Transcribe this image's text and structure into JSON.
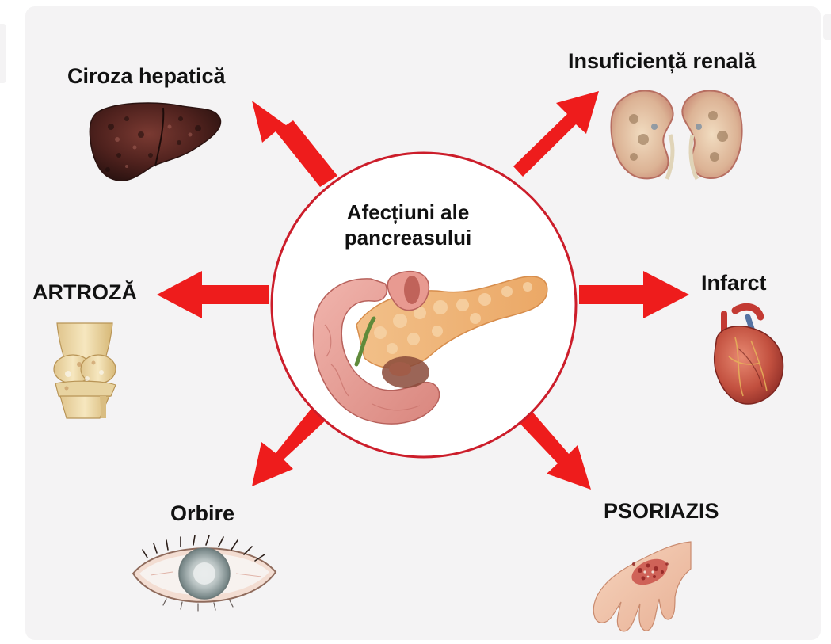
{
  "center": {
    "title_line1": "Afecțiuni ale",
    "title_line2": "pancreasului"
  },
  "conditions": {
    "liver": "Ciroza hepatică",
    "kidney": "Insuficiență renală",
    "joint": "ARTROZĂ",
    "heart": "Infarct",
    "eye": "Orbire",
    "skin": "PSORIAZIS"
  },
  "colors": {
    "arrow": "#ee1c1c",
    "circle_border": "#cc1d2a",
    "background": "#f4f3f4"
  },
  "icons": [
    "liver-icon",
    "kidney-icon",
    "knee-joint-icon",
    "heart-icon",
    "eye-icon",
    "hand-rash-icon",
    "pancreas-icon"
  ]
}
